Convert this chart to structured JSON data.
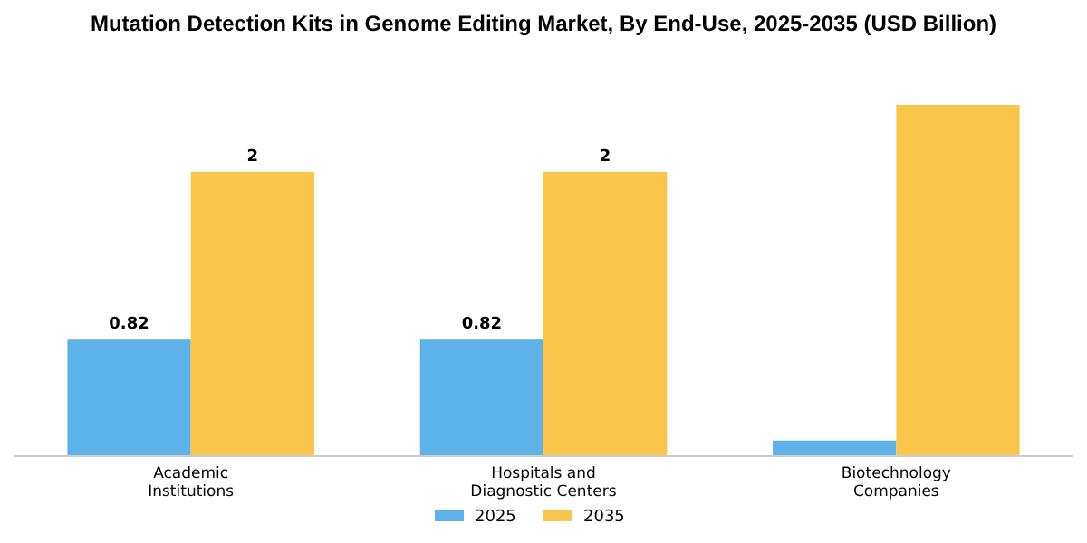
{
  "chart_data": {
    "type": "bar",
    "title": "Mutation Detection Kits in Genome Editing Market, By End-Use, 2025-2035 (USD Billion)",
    "categories": [
      "Academic\nInstitutions",
      "Hospitals and\nDiagnostic Centers",
      "Biotechnology\nCompanies"
    ],
    "series": [
      {
        "name": "2025",
        "color": "#5db3e8",
        "values": [
          0.82,
          0.82,
          0.11
        ],
        "value_labels": [
          "0.82",
          "0.82",
          null
        ]
      },
      {
        "name": "2035",
        "color": "#f9c54b",
        "values": [
          2,
          2,
          2.47
        ],
        "value_labels": [
          "2",
          "2",
          null
        ]
      }
    ],
    "legend": "bottom"
  }
}
